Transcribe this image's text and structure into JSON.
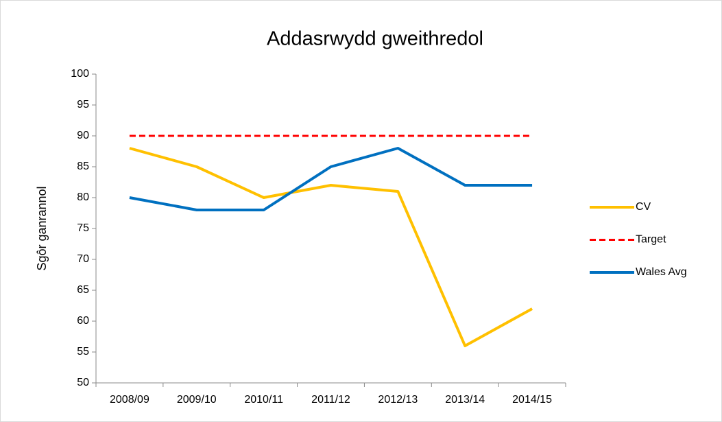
{
  "chart_data": {
    "type": "line",
    "title": "Addasrwydd gweithredol",
    "y_label": "Sgôr ganrannol",
    "categories": [
      "2008/09",
      "2009/10",
      "2010/11",
      "2011/12",
      "2012/13",
      "2013/14",
      "2014/15"
    ],
    "series": [
      {
        "name": "CV",
        "color": "#ffc000",
        "values": [
          88,
          85,
          80,
          82,
          81,
          56,
          62
        ]
      },
      {
        "name": "Target",
        "color": "#ff0000",
        "dashed": true,
        "values": [
          90,
          90,
          90,
          90,
          90,
          90,
          90
        ]
      },
      {
        "name": "Wales Avg",
        "color": "#0070c0",
        "values": [
          80,
          78,
          78,
          85,
          88,
          82,
          82
        ]
      }
    ],
    "ylim": [
      50,
      100
    ],
    "yticks": [
      50,
      55,
      60,
      65,
      70,
      75,
      80,
      85,
      90,
      95,
      100
    ],
    "grid": false,
    "legend": "right"
  }
}
